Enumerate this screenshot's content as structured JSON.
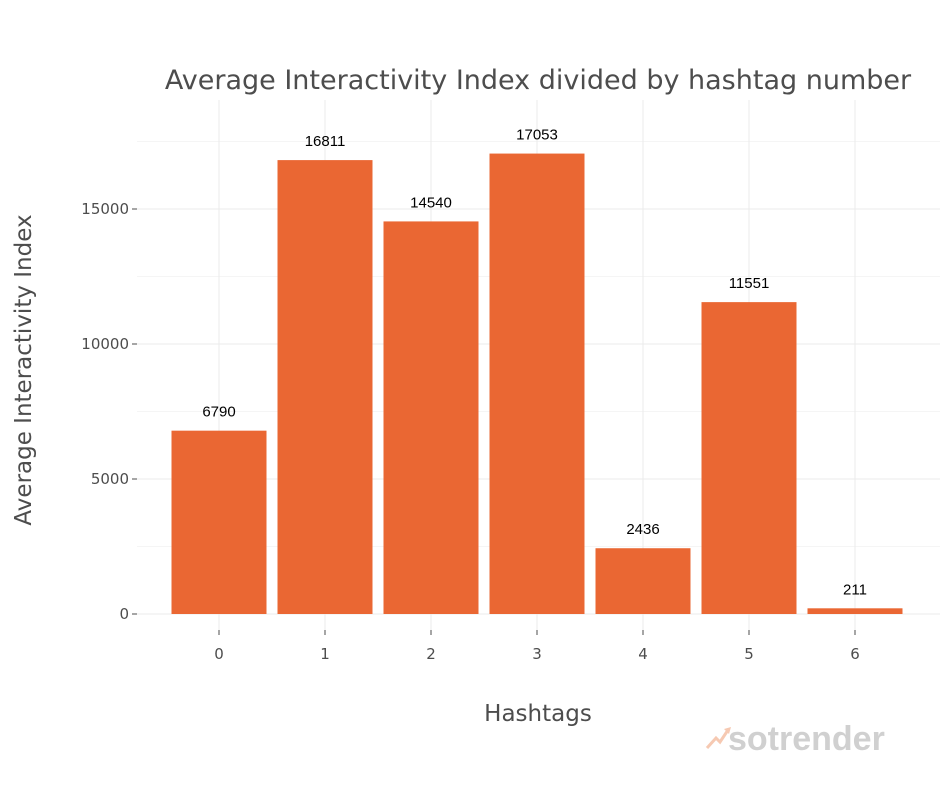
{
  "chart_data": {
    "type": "bar",
    "title": "Average Interactivity Index divided by hashtag number",
    "xlabel": "Hashtags",
    "ylabel": "Average Interactivity Index",
    "categories": [
      "0",
      "1",
      "2",
      "3",
      "4",
      "5",
      "6"
    ],
    "values": [
      6790,
      16811,
      14540,
      17053,
      2436,
      11551,
      211
    ],
    "data_labels": [
      "6790",
      "16811",
      "14540",
      "17053",
      "2436",
      "11551",
      "211"
    ],
    "yticks": [
      0,
      5000,
      10000,
      15000
    ],
    "ytick_labels": [
      "0",
      "5000",
      "10000",
      "15000"
    ],
    "ylim": [
      0,
      17500
    ],
    "grid": true,
    "bar_color": "#EA6733"
  },
  "watermark": "sotrender"
}
